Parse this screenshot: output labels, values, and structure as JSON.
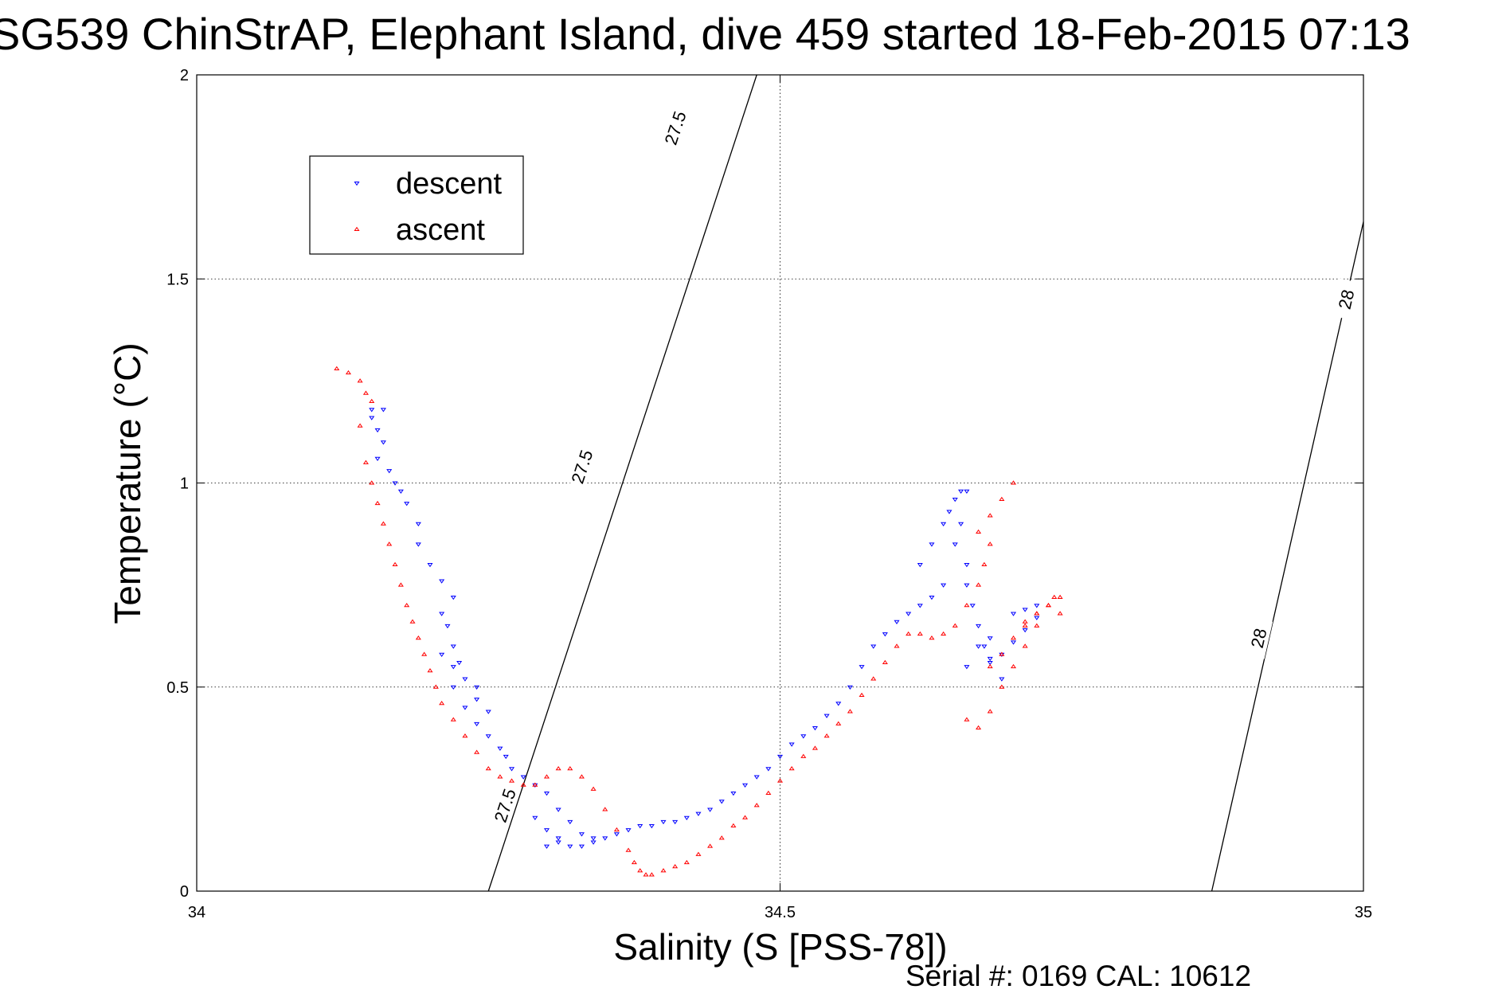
{
  "chart_data": {
    "type": "scatter",
    "title": "SG539 ChinStrAP, Elephant Island, dive 459 started 18-Feb-2015 07:13",
    "xlabel": "Salinity (S [PSS-78])",
    "ylabel": "Temperature (°C)",
    "xlim": [
      34,
      35
    ],
    "ylim": [
      0,
      2
    ],
    "xticks": [
      "34",
      "34.5",
      "35"
    ],
    "yticks": [
      "0",
      "0.5",
      "1",
      "1.5",
      "2"
    ],
    "grid": true,
    "legend_position": "top-left",
    "footer": "Serial #: 0169 CAL: 10612",
    "series": [
      {
        "name": "descent",
        "marker": "triangle-down",
        "color": "#0000ff",
        "x": [
          34.15,
          34.16,
          34.15,
          34.155,
          34.16,
          34.155,
          34.165,
          34.17,
          34.175,
          34.18,
          34.19,
          34.19,
          34.2,
          34.21,
          34.22,
          34.21,
          34.215,
          34.22,
          34.225,
          34.21,
          34.22,
          34.23,
          34.24,
          34.24,
          34.25,
          34.22,
          34.23,
          34.24,
          34.25,
          34.26,
          34.265,
          34.27,
          34.28,
          34.29,
          34.3,
          34.31,
          34.32,
          34.33,
          34.34,
          34.29,
          34.3,
          34.31,
          34.3,
          34.31,
          34.32,
          34.33,
          34.34,
          34.35,
          34.36,
          34.37,
          34.38,
          34.39,
          34.4,
          34.41,
          34.42,
          34.43,
          34.44,
          34.45,
          34.46,
          34.47,
          34.48,
          34.49,
          34.5,
          34.51,
          34.52,
          34.53,
          34.54,
          34.55,
          34.56,
          34.57,
          34.58,
          34.59,
          34.6,
          34.61,
          34.62,
          34.63,
          34.64,
          34.62,
          34.63,
          34.64,
          34.645,
          34.65,
          34.655,
          34.66,
          34.655,
          34.65,
          34.66,
          34.66,
          34.665,
          34.67,
          34.675,
          34.68,
          34.69,
          34.7,
          34.71,
          34.72,
          34.7,
          34.71,
          34.72,
          34.68,
          34.69,
          34.67,
          34.68,
          34.66
        ],
        "y": [
          1.18,
          1.18,
          1.16,
          1.13,
          1.1,
          1.06,
          1.03,
          1.0,
          0.98,
          0.95,
          0.9,
          0.85,
          0.8,
          0.76,
          0.72,
          0.68,
          0.65,
          0.6,
          0.56,
          0.58,
          0.55,
          0.52,
          0.5,
          0.47,
          0.44,
          0.5,
          0.45,
          0.41,
          0.38,
          0.35,
          0.33,
          0.3,
          0.28,
          0.26,
          0.24,
          0.2,
          0.17,
          0.14,
          0.12,
          0.18,
          0.15,
          0.13,
          0.11,
          0.12,
          0.11,
          0.11,
          0.13,
          0.13,
          0.14,
          0.15,
          0.16,
          0.16,
          0.17,
          0.17,
          0.18,
          0.19,
          0.2,
          0.22,
          0.24,
          0.26,
          0.28,
          0.3,
          0.33,
          0.36,
          0.38,
          0.4,
          0.43,
          0.46,
          0.5,
          0.55,
          0.6,
          0.63,
          0.66,
          0.68,
          0.7,
          0.72,
          0.75,
          0.8,
          0.85,
          0.9,
          0.93,
          0.96,
          0.98,
          0.98,
          0.9,
          0.85,
          0.8,
          0.75,
          0.7,
          0.65,
          0.6,
          0.57,
          0.58,
          0.61,
          0.64,
          0.67,
          0.68,
          0.69,
          0.7,
          0.56,
          0.52,
          0.6,
          0.62,
          0.55
        ]
      },
      {
        "name": "ascent",
        "marker": "triangle-up",
        "color": "#ff0000",
        "x": [
          34.12,
          34.13,
          34.14,
          34.145,
          34.15,
          34.14,
          34.145,
          34.15,
          34.155,
          34.16,
          34.165,
          34.17,
          34.175,
          34.18,
          34.185,
          34.19,
          34.195,
          34.2,
          34.205,
          34.21,
          34.22,
          34.23,
          34.24,
          34.25,
          34.26,
          34.27,
          34.28,
          34.29,
          34.3,
          34.31,
          34.32,
          34.33,
          34.34,
          34.35,
          34.36,
          34.37,
          34.375,
          34.38,
          34.385,
          34.39,
          34.4,
          34.41,
          34.42,
          34.43,
          34.44,
          34.45,
          34.46,
          34.47,
          34.48,
          34.49,
          34.5,
          34.51,
          34.52,
          34.53,
          34.54,
          34.55,
          34.56,
          34.57,
          34.58,
          34.59,
          34.6,
          34.61,
          34.62,
          34.63,
          34.64,
          34.65,
          34.66,
          34.67,
          34.675,
          34.68,
          34.66,
          34.67,
          34.68,
          34.69,
          34.7,
          34.71,
          34.72,
          34.73,
          34.74,
          34.67,
          34.68,
          34.69,
          34.7,
          34.68,
          34.69,
          34.7,
          34.71,
          34.72,
          34.735,
          34.72,
          34.71,
          34.73,
          34.74
        ],
        "y": [
          1.28,
          1.27,
          1.25,
          1.22,
          1.2,
          1.14,
          1.05,
          1.0,
          0.95,
          0.9,
          0.85,
          0.8,
          0.75,
          0.7,
          0.66,
          0.62,
          0.58,
          0.54,
          0.5,
          0.46,
          0.42,
          0.38,
          0.34,
          0.3,
          0.28,
          0.27,
          0.26,
          0.26,
          0.28,
          0.3,
          0.3,
          0.28,
          0.25,
          0.2,
          0.15,
          0.1,
          0.07,
          0.05,
          0.04,
          0.04,
          0.05,
          0.06,
          0.07,
          0.09,
          0.11,
          0.13,
          0.16,
          0.18,
          0.21,
          0.24,
          0.27,
          0.3,
          0.33,
          0.35,
          0.38,
          0.41,
          0.44,
          0.48,
          0.52,
          0.56,
          0.6,
          0.63,
          0.63,
          0.62,
          0.63,
          0.65,
          0.7,
          0.75,
          0.8,
          0.85,
          0.42,
          0.4,
          0.44,
          0.5,
          0.55,
          0.6,
          0.65,
          0.7,
          0.72,
          0.88,
          0.92,
          0.96,
          1.0,
          0.55,
          0.58,
          0.62,
          0.65,
          0.68,
          0.72,
          0.68,
          0.66,
          0.7,
          0.68
        ]
      }
    ],
    "isopycnals": [
      {
        "label": "27.5",
        "line": [
          [
            34.25,
            0
          ],
          [
            34.48,
            2
          ]
        ],
        "label_positions": [
          [
            34.264,
            0.21
          ],
          [
            34.33,
            1.04
          ],
          [
            34.41,
            1.87
          ]
        ]
      },
      {
        "label": "28",
        "line": [
          [
            34.87,
            0
          ],
          [
            35,
            1.64
          ]
        ],
        "label_positions": [
          [
            34.91,
            0.62
          ],
          [
            34.985,
            1.45
          ]
        ]
      }
    ]
  }
}
